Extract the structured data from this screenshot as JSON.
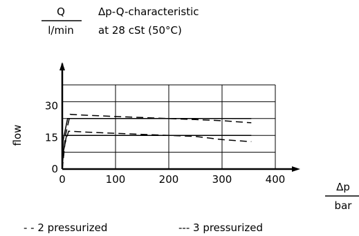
{
  "chart_data": {
    "type": "line",
    "title_line1": "Δp-Q-characteristic",
    "title_line2": "at 28 cSt (50°C)",
    "ylabel_top": "Q",
    "ylabel_bottom": "l/min",
    "ylabel_side": "flow",
    "xlabel_top": "Δp",
    "xlabel_bottom": "bar",
    "xlim": [
      0,
      400
    ],
    "ylim": [
      0,
      40
    ],
    "xticks": [
      0,
      100,
      200,
      300,
      400
    ],
    "yticks": [
      0,
      15,
      30
    ],
    "grid": true,
    "legend": [
      "- - 2 pressurized",
      "--- 3 pressurized"
    ],
    "series": [
      {
        "style": "solid",
        "x": [
          0,
          2,
          10,
          20,
          100,
          200,
          300,
          355
        ],
        "y": [
          0,
          14,
          24,
          24,
          24,
          24,
          24,
          24
        ]
      },
      {
        "style": "solid",
        "x": [
          0,
          2,
          8,
          20,
          100,
          200,
          300,
          355
        ],
        "y": [
          0,
          8,
          16,
          16,
          16,
          16,
          16,
          16
        ]
      },
      {
        "style": "dashed",
        "x": [
          0,
          6,
          15,
          50,
          100,
          150,
          200,
          250,
          300,
          355
        ],
        "y": [
          0,
          16,
          26,
          25.5,
          25,
          24.5,
          24,
          23.5,
          23,
          22
        ]
      },
      {
        "style": "dashed",
        "x": [
          0,
          5,
          12,
          50,
          100,
          150,
          200,
          250,
          300,
          355
        ],
        "y": [
          0,
          12,
          18,
          17.5,
          17,
          16.5,
          16,
          15.5,
          14,
          13
        ]
      }
    ]
  }
}
